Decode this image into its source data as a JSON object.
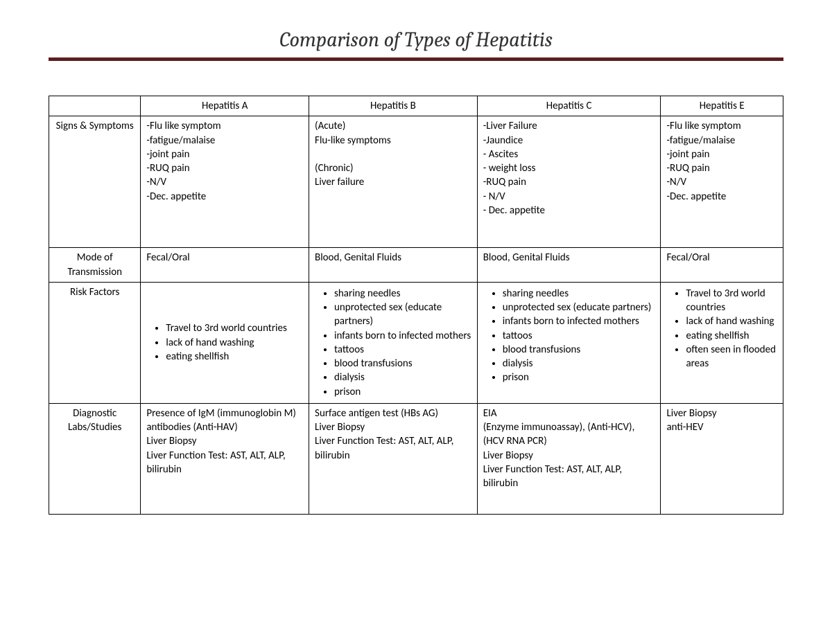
{
  "title": "Comparison of Types of Hepatitis",
  "columns": [
    "",
    "Hepatitis A",
    "Hepatitis B",
    "Hepatitis C",
    "Hepatitis E"
  ],
  "rows": {
    "signs": {
      "label": "Signs & Symptoms",
      "hepA": [
        "-Flu like symptom",
        "-fatigue/malaise",
        "-joint pain",
        "-RUQ pain",
        "-N/V",
        "-Dec. appetite"
      ],
      "hepB": [
        "(Acute)",
        "Flu-like symptoms",
        "",
        "(Chronic)",
        "Liver failure"
      ],
      "hepC": [
        "-Liver Failure",
        "-Jaundice",
        "- Ascites",
        "- weight loss",
        "-RUQ pain",
        "- N/V",
        "- Dec. appetite"
      ],
      "hepE": [
        "-Flu like symptom",
        "-fatigue/malaise",
        "-joint pain",
        "-RUQ pain",
        "-N/V",
        "-Dec. appetite"
      ]
    },
    "mode": {
      "label": "Mode of Transmission",
      "hepA": "Fecal/Oral",
      "hepB": "Blood, Genital Fluids",
      "hepC": "Blood, Genital Fluids",
      "hepE": "Fecal/Oral"
    },
    "risk": {
      "label": "Risk Factors",
      "hepA": [
        "Travel to 3rd world countries",
        "lack of hand washing",
        "eating shellfish"
      ],
      "hepB": [
        "sharing needles",
        "unprotected sex (educate partners)",
        "infants born to infected mothers",
        "tattoos",
        "blood transfusions",
        "dialysis",
        "prison"
      ],
      "hepC": [
        "sharing needles",
        "unprotected sex (educate partners)",
        "infants born to infected mothers",
        "tattoos",
        "blood transfusions",
        "dialysis",
        "prison"
      ],
      "hepD": [],
      "hepE": [
        "Travel to 3rd world countries",
        "lack of hand washing",
        "eating shellfish",
        "often seen in flooded areas"
      ]
    },
    "labs": {
      "label": "Diagnostic Labs/Studies",
      "hepA": [
        "Presence of IgM (immunoglobin M) antibodies (Anti-HAV)",
        "Liver Biopsy",
        "Liver Function Test: AST, ALT, ALP, bilirubin"
      ],
      "hepB": [
        "Surface antigen test (HBs AG)",
        "Liver Biopsy",
        "Liver Function Test: AST, ALT, ALP, bilirubin"
      ],
      "hepC": [
        "EIA",
        "(Enzyme immunoassay), (Anti-HCV), (HCV RNA PCR)",
        "Liver Biopsy",
        "Liver Function Test: AST, ALT, ALP, bilirubin"
      ],
      "hepE": [
        "Liver Biopsy",
        "anti-HEV"
      ]
    }
  }
}
